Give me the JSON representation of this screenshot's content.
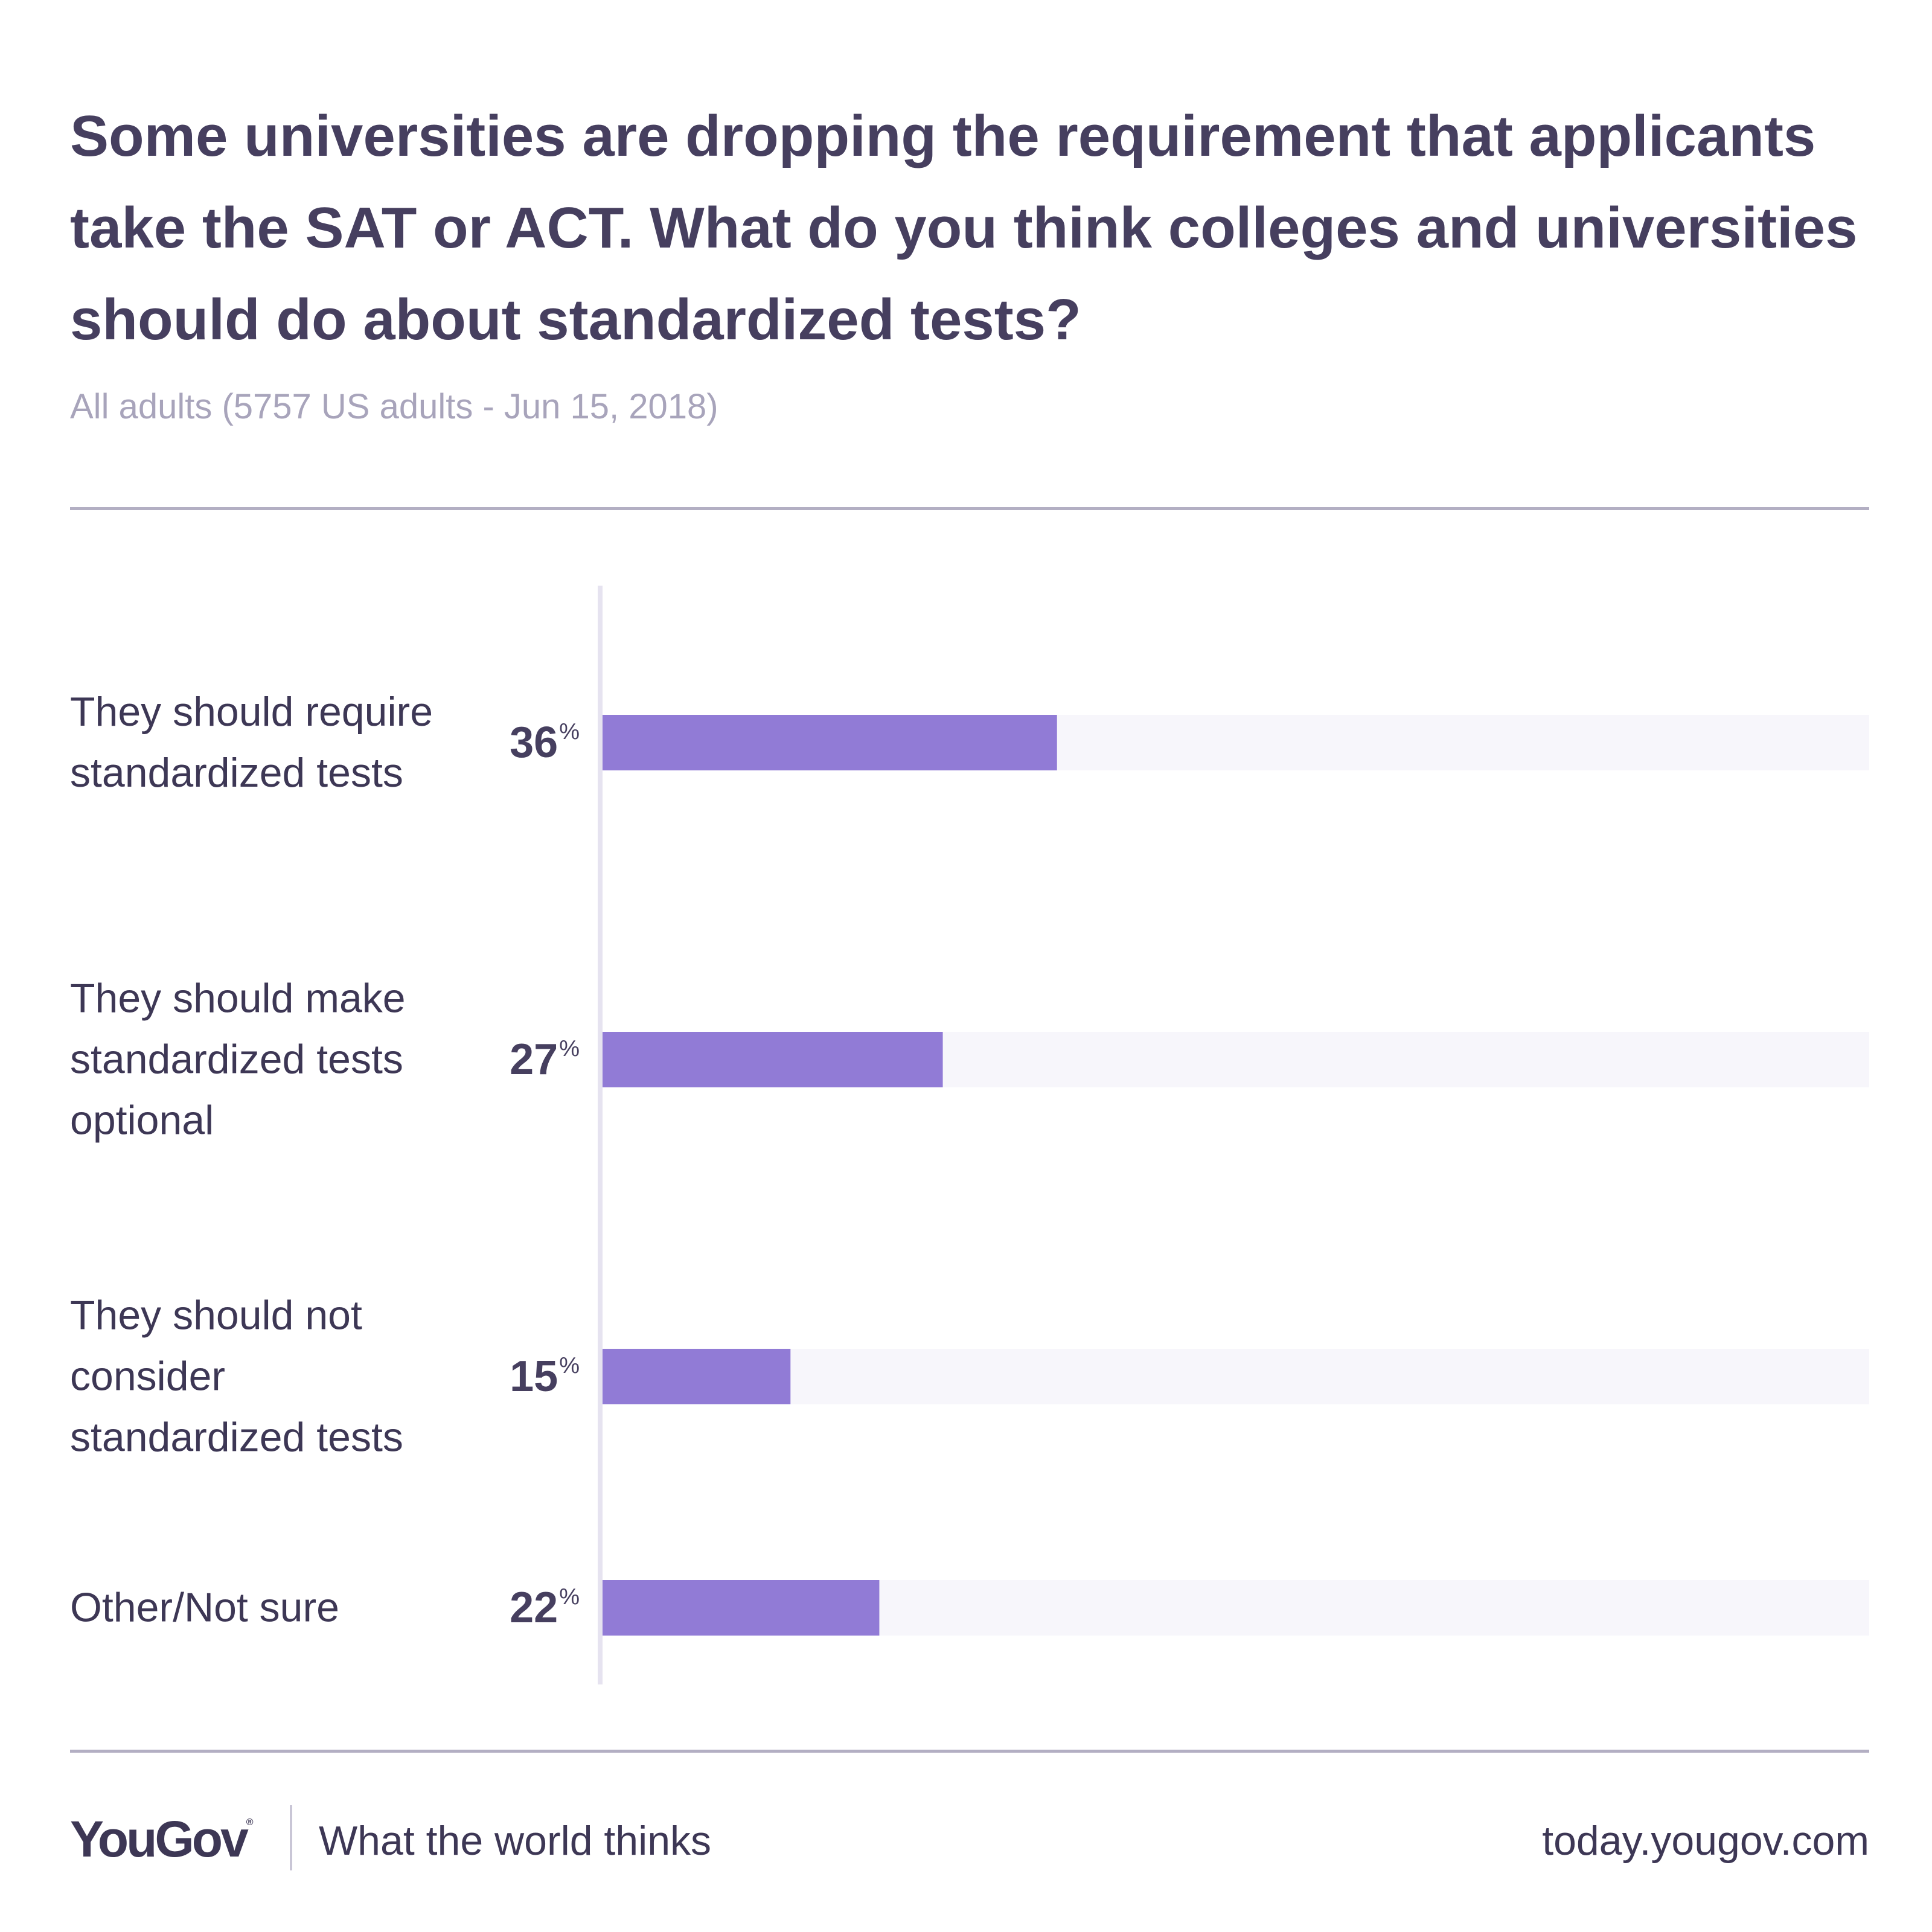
{
  "header": {
    "title": "Some universities are dropping the requirement that applicants take the SAT or ACT. What do you think colleges and universities should do about standardized tests?",
    "subtitle": "All adults (5757 US adults - Jun 15, 2018)"
  },
  "chart_data": {
    "type": "bar",
    "orientation": "horizontal",
    "categories": [
      "They should require standardized tests",
      "They should make standardized tests optional",
      "They should not consider standardized tests",
      "Other/Not sure"
    ],
    "values": [
      36,
      27,
      15,
      22
    ],
    "value_labels": [
      "36",
      "27",
      "15",
      "22"
    ],
    "value_suffix": "%",
    "xlim": [
      0,
      100
    ],
    "grid": false,
    "legend": "none",
    "colors": {
      "bar": "#917bd6",
      "track": "#f7f6fb",
      "axis": "#e6e3f0"
    }
  },
  "footer": {
    "brand": "YouGov",
    "trademark": "®",
    "tagline": "What the world thinks",
    "url": "today.yougov.com"
  }
}
